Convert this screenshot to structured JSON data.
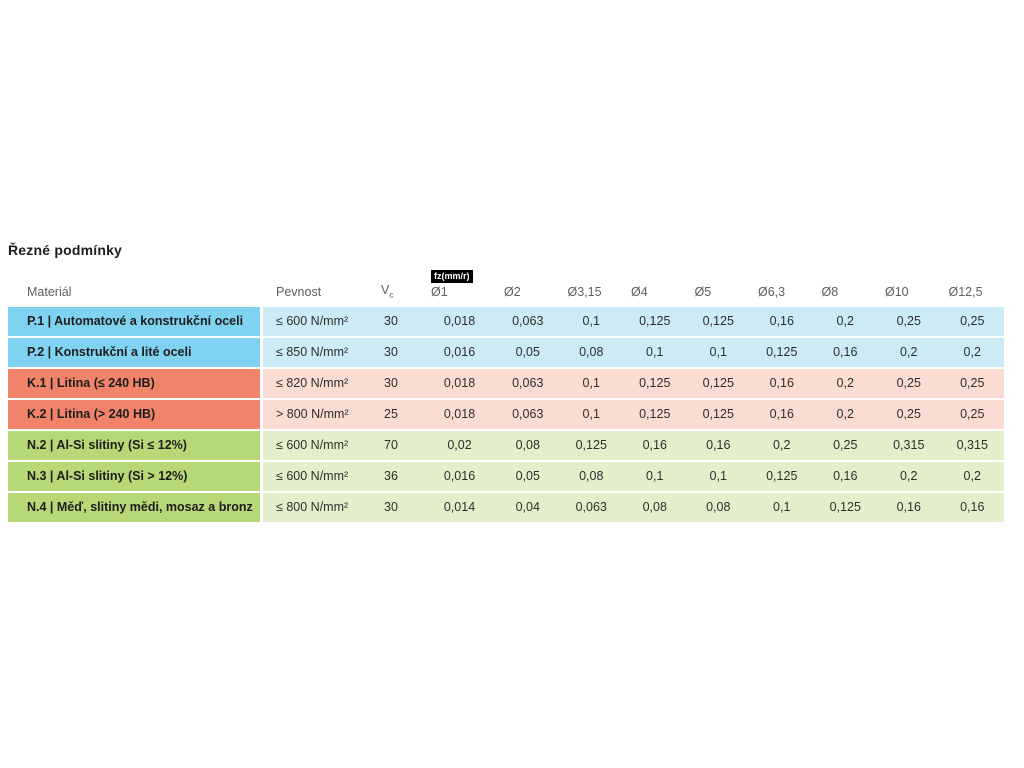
{
  "chart_data": {
    "type": "table",
    "title": "Řezné podmínky",
    "headers": {
      "material": "Materiál",
      "strength": "Pevnost",
      "vc_base": "V",
      "vc_subscript": "c",
      "fz_badge": "fz(mm/r)",
      "diameters": [
        "Ø1",
        "Ø2",
        "Ø3,15",
        "Ø4",
        "Ø5",
        "Ø6,3",
        "Ø8",
        "Ø10",
        "Ø12,5"
      ]
    },
    "rows": [
      {
        "group": "P",
        "label": "P.1 | Automatové a konstrukční oceli",
        "strength": "≤ 600 N/mm²",
        "vc": "30",
        "fz": [
          "0,018",
          "0,063",
          "0,1",
          "0,125",
          "0,125",
          "0,16",
          "0,2",
          "0,25",
          "0,25"
        ]
      },
      {
        "group": "P",
        "label": "P.2 | Konstrukční a lité oceli",
        "strength": "≤ 850 N/mm²",
        "vc": "30",
        "fz": [
          "0,016",
          "0,05",
          "0,08",
          "0,1",
          "0,1",
          "0,125",
          "0,16",
          "0,2",
          "0,2"
        ]
      },
      {
        "group": "K",
        "label": "K.1 | Litina (≤ 240 HB)",
        "strength": "≤ 820 N/mm²",
        "vc": "30",
        "fz": [
          "0,018",
          "0,063",
          "0,1",
          "0,125",
          "0,125",
          "0,16",
          "0,2",
          "0,25",
          "0,25"
        ]
      },
      {
        "group": "K",
        "label": "K.2 | Litina (> 240 HB)",
        "strength": "> 800 N/mm²",
        "vc": "25",
        "fz": [
          "0,018",
          "0,063",
          "0,1",
          "0,125",
          "0,125",
          "0,16",
          "0,2",
          "0,25",
          "0,25"
        ]
      },
      {
        "group": "N",
        "label": "N.2 | Al-Si slitiny (Si ≤ 12%)",
        "strength": "≤ 600 N/mm²",
        "vc": "70",
        "fz": [
          "0,02",
          "0,08",
          "0,125",
          "0,16",
          "0,16",
          "0,2",
          "0,25",
          "0,315",
          "0,315"
        ]
      },
      {
        "group": "N",
        "label": "N.3 | Al-Si slitiny (Si > 12%)",
        "strength": "≤ 600 N/mm²",
        "vc": "36",
        "fz": [
          "0,016",
          "0,05",
          "0,08",
          "0,1",
          "0,1",
          "0,125",
          "0,16",
          "0,2",
          "0,2"
        ]
      },
      {
        "group": "N",
        "label": "N.4 | Měď, slitiny mědi, mosaz a bronz",
        "strength": "≤ 800 N/mm²",
        "vc": "30",
        "fz": [
          "0,014",
          "0,04",
          "0,063",
          "0,08",
          "0,08",
          "0,1",
          "0,125",
          "0,16",
          "0,16"
        ]
      }
    ],
    "colors": {
      "P": {
        "label_bg": "#7fd3f0",
        "row_bg": "#cdeaf7"
      },
      "K": {
        "label_bg": "#f0836a",
        "row_bg": "#fadcd2"
      },
      "N": {
        "label_bg": "#b6d876",
        "row_bg": "#e3efcb"
      }
    },
    "layout": {
      "legend_position": "none",
      "grid": "off",
      "header_alignment": "left",
      "value_alignment": "center"
    }
  }
}
